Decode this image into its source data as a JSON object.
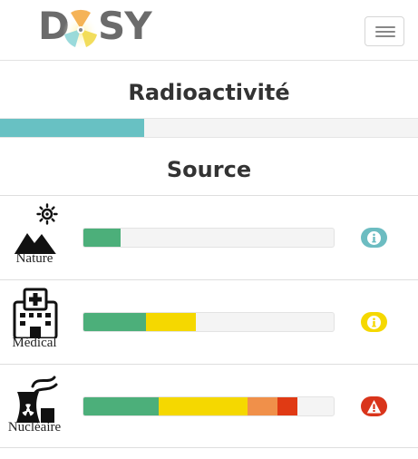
{
  "header": {
    "logo_left": "D",
    "logo_right": "SY",
    "logo_icon": "radiation-flower-icon",
    "menu_icon": "hamburger-icon"
  },
  "main": {
    "title": "Radioactivité",
    "progress": 0.345,
    "progress_color": "#68c1c3"
  },
  "section_title": "Source",
  "colors": {
    "green": "#4caf7a",
    "yellow": "#f5d800",
    "orange": "#f0904a",
    "red": "#e03a14",
    "info_teal": "#6cbcc1",
    "info_yellow": "#f5d800",
    "alert_red": "#d9341b"
  },
  "sources": [
    {
      "label": "Nature",
      "icon": "mountain-sun-icon",
      "segments": [
        {
          "color": "green",
          "value": 0.15
        }
      ],
      "badge": {
        "type": "info",
        "color": "info_teal",
        "icon": "info-icon"
      }
    },
    {
      "label": "Médical",
      "icon": "hospital-icon",
      "segments": [
        {
          "color": "green",
          "value": 0.25
        },
        {
          "color": "yellow",
          "value": 0.2
        }
      ],
      "badge": {
        "type": "info",
        "color": "info_yellow",
        "icon": "info-icon"
      }
    },
    {
      "label": "Nucléaire",
      "icon": "nuclear-plant-icon",
      "segments": [
        {
          "color": "green",
          "value": 0.3
        },
        {
          "color": "yellow",
          "value": 0.355
        },
        {
          "color": "orange",
          "value": 0.12
        },
        {
          "color": "red",
          "value": 0.08
        }
      ],
      "badge": {
        "type": "warning",
        "color": "alert_red",
        "icon": "warning-icon"
      }
    }
  ]
}
